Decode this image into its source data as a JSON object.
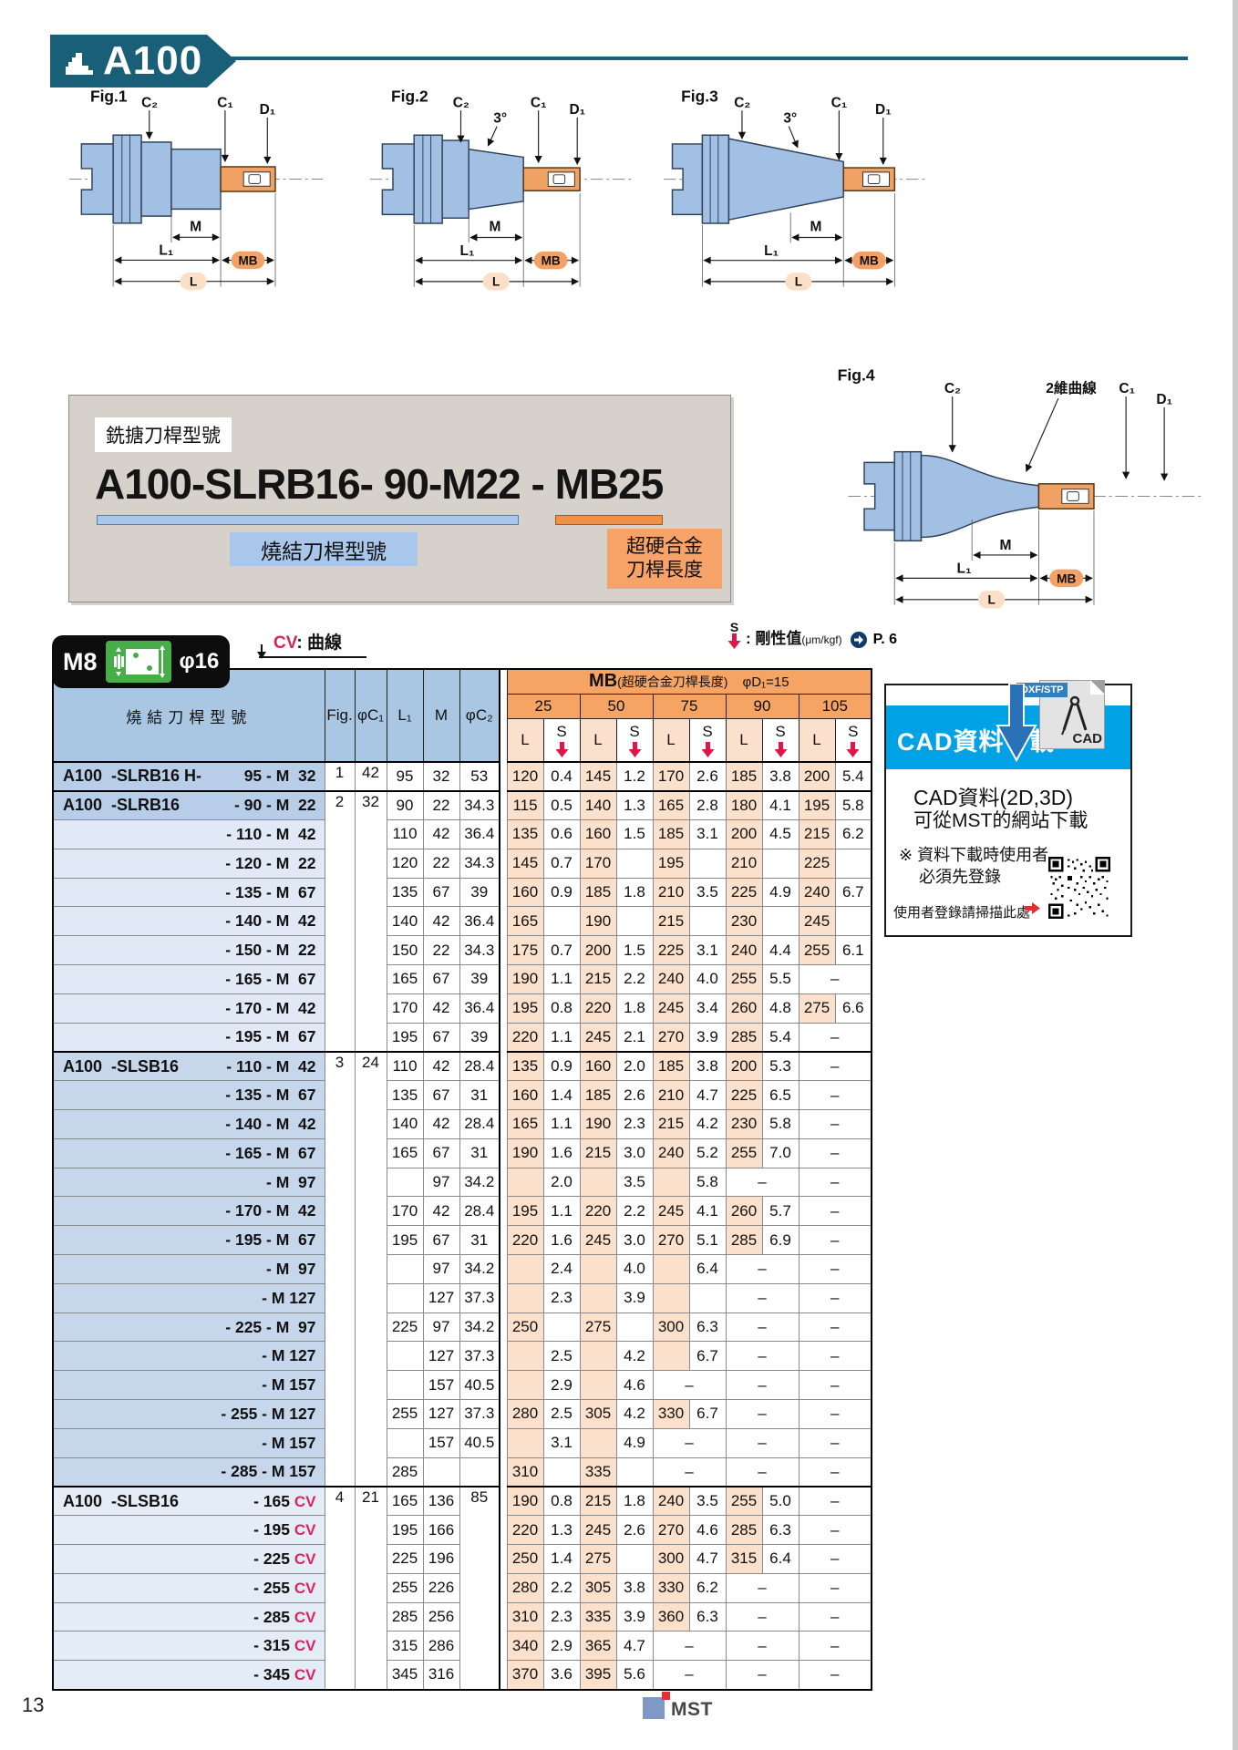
{
  "banner": {
    "model": "A100"
  },
  "figures": {
    "fig1": {
      "label": "Fig.1"
    },
    "fig2": {
      "label": "Fig.2"
    },
    "fig3": {
      "label": "Fig.3"
    },
    "fig4": {
      "label": "Fig.4"
    },
    "dims": {
      "c2": "C₂",
      "c1": "C₁",
      "d1": "D₁",
      "m": "M",
      "l1": "L₁",
      "mb": "MB",
      "l": "L",
      "angle": "3°",
      "curve": "2維曲線"
    }
  },
  "part_box": {
    "tag": "銑搪刀桿型號",
    "code_main": "A100-SLRB16- 90-M22",
    "code_sep": " - ",
    "code_mb": "MB25",
    "blue_label": "燒結刀桿型號",
    "orange_label1": "超硬合金",
    "orange_label2": "刀桿長度"
  },
  "legend": {
    "badge_left": "M8",
    "badge_right": "φ16",
    "cv_key": "CV",
    "cv_label": ": 曲線",
    "s_key": "S",
    "s_label": ": 剛性值",
    "s_unit": "(μm/kgf)",
    "s_ref": "P. 6"
  },
  "table": {
    "headers": {
      "model": "燒結刀桿型號",
      "fig": "Fig.",
      "c1": "φC₁",
      "l1": "L₁",
      "m": "M",
      "c2": "φC₂",
      "mb": "MB",
      "mb_paren": "(超硬合金刀桿長度)",
      "d1": "φD₁=15",
      "sizes": [
        "25",
        "50",
        "75",
        "90",
        "105"
      ],
      "l": "L",
      "s": "S"
    },
    "rows": [
      {
        "c": "g1",
        "lf": "A100  -SLRB16 H-",
        "rt": "95 - M  32",
        "fg": [
          "1",
          1
        ],
        "c1": [
          "42",
          1
        ],
        "l1": "95",
        "mv": "32",
        "c2": [
          "53"
        ],
        "mb": [
          [
            "120",
            "0.4"
          ],
          [
            "145",
            "1.2"
          ],
          [
            "170",
            "2.6"
          ],
          [
            "185",
            "3.8"
          ],
          [
            "200",
            "5.4"
          ]
        ]
      },
      {
        "c": "g2h gs",
        "lf": "A100  -SLRB16",
        "rt": "- 90 - M  22",
        "fg": [
          "2",
          9
        ],
        "c1": [
          "32",
          9
        ],
        "l1": "90",
        "mv": "22",
        "c2": [
          "34.3"
        ],
        "mb": [
          [
            "115",
            "0.5"
          ],
          [
            "140",
            "1.3"
          ],
          [
            "165",
            "2.8"
          ],
          [
            "180",
            "4.1"
          ],
          [
            "195",
            "5.8"
          ]
        ]
      },
      {
        "c": "g2",
        "rt": "- 110 - M  42",
        "l1": "110",
        "mv": "42",
        "c2": [
          "36.4"
        ],
        "mb": [
          [
            "135",
            "0.6"
          ],
          [
            "160",
            "1.5"
          ],
          [
            "185",
            "3.1"
          ],
          [
            "200",
            "4.5"
          ],
          [
            "215",
            "6.2"
          ]
        ]
      },
      {
        "c": "g2",
        "rt": "- 120 - M  22",
        "l1": "120",
        "mv": "22",
        "c2": [
          "34.3"
        ],
        "mb": [
          [
            "145",
            "0.7"
          ],
          [
            "170",
            ""
          ],
          [
            "195",
            ""
          ],
          [
            "210",
            ""
          ],
          [
            "225",
            ""
          ]
        ]
      },
      {
        "c": "g2",
        "rt": "- 135 - M  67",
        "l1": "135",
        "mv": "67",
        "c2": [
          "39"
        ],
        "mb": [
          [
            "160",
            "0.9"
          ],
          [
            "185",
            "1.8"
          ],
          [
            "210",
            "3.5"
          ],
          [
            "225",
            "4.9"
          ],
          [
            "240",
            "6.7"
          ]
        ]
      },
      {
        "c": "g2",
        "rt": "- 140 - M  42",
        "l1": "140",
        "mv": "42",
        "c2": [
          "36.4"
        ],
        "mb": [
          [
            "165",
            ""
          ],
          [
            "190",
            ""
          ],
          [
            "215",
            ""
          ],
          [
            "230",
            ""
          ],
          [
            "245",
            ""
          ]
        ]
      },
      {
        "c": "g2",
        "rt": "- 150 - M  22",
        "l1": "150",
        "mv": "22",
        "c2": [
          "34.3"
        ],
        "mb": [
          [
            "175",
            "0.7"
          ],
          [
            "200",
            "1.5"
          ],
          [
            "225",
            "3.1"
          ],
          [
            "240",
            "4.4"
          ],
          [
            "255",
            "6.1"
          ]
        ]
      },
      {
        "c": "g2",
        "rt": "- 165 - M  67",
        "l1": "165",
        "mv": "67",
        "c2": [
          "39"
        ],
        "mb": [
          [
            "190",
            "1.1"
          ],
          [
            "215",
            "2.2"
          ],
          [
            "240",
            "4.0"
          ],
          [
            "255",
            "5.5"
          ],
          [
            "–"
          ]
        ]
      },
      {
        "c": "g2",
        "rt": "- 170 - M  42",
        "l1": "170",
        "mv": "42",
        "c2": [
          "36.4"
        ],
        "mb": [
          [
            "195",
            "0.8"
          ],
          [
            "220",
            "1.8"
          ],
          [
            "245",
            "3.4"
          ],
          [
            "260",
            "4.8"
          ],
          [
            "275",
            "6.6"
          ]
        ]
      },
      {
        "c": "g2",
        "rt": "- 195 - M  67",
        "l1": "195",
        "mv": "67",
        "c2": [
          "39"
        ],
        "mb": [
          [
            "220",
            "1.1"
          ],
          [
            "245",
            "2.1"
          ],
          [
            "270",
            "3.9"
          ],
          [
            "285",
            "5.4"
          ],
          [
            "–"
          ]
        ]
      },
      {
        "c": "g3 gs",
        "lf": "A100  -SLSB16",
        "rt": "- 110 - M  42",
        "fg": [
          "3",
          15
        ],
        "c1": [
          "24",
          15
        ],
        "l1": "110",
        "mv": "42",
        "c2": [
          "28.4"
        ],
        "mb": [
          [
            "135",
            "0.9"
          ],
          [
            "160",
            "2.0"
          ],
          [
            "185",
            "3.8"
          ],
          [
            "200",
            "5.3"
          ],
          [
            "–"
          ]
        ]
      },
      {
        "c": "g3",
        "rt": "- 135 - M  67",
        "l1": "135",
        "mv": "67",
        "c2": [
          "31"
        ],
        "mb": [
          [
            "160",
            "1.4"
          ],
          [
            "185",
            "2.6"
          ],
          [
            "210",
            "4.7"
          ],
          [
            "225",
            "6.5"
          ],
          [
            "–"
          ]
        ]
      },
      {
        "c": "g3",
        "rt": "- 140 - M  42",
        "l1": "140",
        "mv": "42",
        "c2": [
          "28.4"
        ],
        "mb": [
          [
            "165",
            "1.1"
          ],
          [
            "190",
            "2.3"
          ],
          [
            "215",
            "4.2"
          ],
          [
            "230",
            "5.8"
          ],
          [
            "–"
          ]
        ]
      },
      {
        "c": "g3",
        "rt": "- 165 - M  67",
        "l1": "165",
        "mv": "67",
        "c2": [
          "31"
        ],
        "mb": [
          [
            "190",
            "1.6"
          ],
          [
            "215",
            "3.0"
          ],
          [
            "240",
            "5.2"
          ],
          [
            "255",
            "7.0"
          ],
          [
            "–"
          ]
        ]
      },
      {
        "c": "g3",
        "rt": "- M  97",
        "l1": "",
        "mv": "97",
        "c2": [
          "34.2"
        ],
        "mb": [
          [
            "",
            "2.0",
            "c"
          ],
          [
            "",
            "3.5",
            "c"
          ],
          [
            "",
            "5.8",
            "c"
          ],
          [
            "–"
          ],
          [
            "–"
          ]
        ]
      },
      {
        "c": "g3",
        "rt": "- 170 - M  42",
        "l1": "170",
        "mv": "42",
        "c2": [
          "28.4"
        ],
        "mb": [
          [
            "195",
            "1.1"
          ],
          [
            "220",
            "2.2"
          ],
          [
            "245",
            "4.1"
          ],
          [
            "260",
            "5.7"
          ],
          [
            "–"
          ]
        ]
      },
      {
        "c": "g3",
        "rt": "- 195 - M  67",
        "l1": "195",
        "mv": "67",
        "c2": [
          "31"
        ],
        "mb": [
          [
            "220",
            "1.6"
          ],
          [
            "245",
            "3.0"
          ],
          [
            "270",
            "5.1"
          ],
          [
            "285",
            "6.9"
          ],
          [
            "–"
          ]
        ]
      },
      {
        "c": "g3",
        "rt": "- M  97",
        "l1": "",
        "mv": "97",
        "c2": [
          "34.2"
        ],
        "mb": [
          [
            "",
            "2.4",
            "c"
          ],
          [
            "",
            "4.0",
            "c"
          ],
          [
            "",
            "6.4",
            "c"
          ],
          [
            "–"
          ],
          [
            "–"
          ]
        ]
      },
      {
        "c": "g3",
        "rt": "- M 127",
        "l1": "",
        "mv": "127",
        "c2": [
          "37.3"
        ],
        "mb": [
          [
            "",
            "2.3",
            "c"
          ],
          [
            "",
            "3.9",
            "c"
          ],
          [
            "",
            "",
            "c"
          ],
          [
            "–"
          ],
          [
            "–"
          ]
        ]
      },
      {
        "c": "g3",
        "rt": "- 225 - M  97",
        "l1": "225",
        "mv": "97",
        "c2": [
          "34.2"
        ],
        "mb": [
          [
            "250",
            ""
          ],
          [
            "275",
            ""
          ],
          [
            "300",
            "6.3"
          ],
          [
            "–"
          ],
          [
            "–"
          ]
        ]
      },
      {
        "c": "g3",
        "rt": "- M 127",
        "l1": "",
        "mv": "127",
        "c2": [
          "37.3"
        ],
        "mb": [
          [
            "",
            "2.5",
            "c"
          ],
          [
            "",
            "4.2",
            "c"
          ],
          [
            "",
            "6.7",
            "c"
          ],
          [
            "–"
          ],
          [
            "–"
          ]
        ]
      },
      {
        "c": "g3",
        "rt": "- M 157",
        "l1": "",
        "mv": "157",
        "c2": [
          "40.5"
        ],
        "mb": [
          [
            "",
            "2.9",
            "c"
          ],
          [
            "",
            "4.6",
            "c"
          ],
          [
            "–"
          ],
          [
            "–"
          ],
          [
            "–"
          ]
        ]
      },
      {
        "c": "g3",
        "rt": "- 255 - M 127",
        "l1": "255",
        "mv": "127",
        "c2": [
          "37.3"
        ],
        "mb": [
          [
            "280",
            "2.5"
          ],
          [
            "305",
            "4.2"
          ],
          [
            "330",
            "6.7"
          ],
          [
            "–"
          ],
          [
            "–"
          ]
        ]
      },
      {
        "c": "g3",
        "rt": "- M 157",
        "l1": "",
        "mv": "157",
        "c2": [
          "40.5"
        ],
        "mb": [
          [
            "",
            "3.1",
            "c"
          ],
          [
            "",
            "4.9",
            "c"
          ],
          [
            "–"
          ],
          [
            "–"
          ],
          [
            "–"
          ]
        ]
      },
      {
        "c": "g3",
        "rt": "- 285 - M 157",
        "l1": "285",
        "mv": "",
        "c2": [
          ""
        ],
        "mb": [
          [
            "310",
            ""
          ],
          [
            "335",
            ""
          ],
          [
            "–"
          ],
          [
            "–"
          ],
          [
            "–"
          ]
        ]
      },
      {
        "c": "g4 gs",
        "lf": "A100  -SLSB16",
        "rt": "- 165",
        "cv": 1,
        "fg": [
          "4",
          7
        ],
        "c1": [
          "21",
          7
        ],
        "l1": "165",
        "mv": "136",
        "c2": [
          "85",
          7
        ],
        "mb": [
          [
            "190",
            "0.8"
          ],
          [
            "215",
            "1.8"
          ],
          [
            "240",
            "3.5"
          ],
          [
            "255",
            "5.0"
          ],
          [
            "–"
          ]
        ]
      },
      {
        "c": "g4",
        "rt": "- 195",
        "cv": 1,
        "l1": "195",
        "mv": "166",
        "c2": null,
        "mb": [
          [
            "220",
            "1.3"
          ],
          [
            "245",
            "2.6"
          ],
          [
            "270",
            "4.6"
          ],
          [
            "285",
            "6.3"
          ],
          [
            "–"
          ]
        ]
      },
      {
        "c": "g4",
        "rt": "- 225",
        "cv": 1,
        "l1": "225",
        "mv": "196",
        "c2": null,
        "mb": [
          [
            "250",
            "1.4"
          ],
          [
            "275",
            ""
          ],
          [
            "300",
            "4.7"
          ],
          [
            "315",
            "6.4"
          ],
          [
            "–"
          ]
        ]
      },
      {
        "c": "g4",
        "rt": "- 255",
        "cv": 1,
        "l1": "255",
        "mv": "226",
        "c2": null,
        "mb": [
          [
            "280",
            "2.2"
          ],
          [
            "305",
            "3.8"
          ],
          [
            "330",
            "6.2"
          ],
          [
            "–"
          ],
          [
            "–"
          ]
        ]
      },
      {
        "c": "g4",
        "rt": "- 285",
        "cv": 1,
        "l1": "285",
        "mv": "256",
        "c2": null,
        "mb": [
          [
            "310",
            "2.3"
          ],
          [
            "335",
            "3.9"
          ],
          [
            "360",
            "6.3"
          ],
          [
            "–"
          ],
          [
            "–"
          ]
        ]
      },
      {
        "c": "g4",
        "rt": "- 315",
        "cv": 1,
        "l1": "315",
        "mv": "286",
        "c2": null,
        "mb": [
          [
            "340",
            "2.9"
          ],
          [
            "365",
            "4.7"
          ],
          [
            "–"
          ],
          [
            "–"
          ],
          [
            "–"
          ]
        ]
      },
      {
        "c": "g4",
        "rt": "- 345",
        "cv": 1,
        "l1": "345",
        "mv": "316",
        "c2": null,
        "mb": [
          [
            "370",
            "3.6"
          ],
          [
            "395",
            "5.6"
          ],
          [
            "–"
          ],
          [
            "–"
          ],
          [
            "–"
          ]
        ]
      }
    ]
  },
  "cad_panel": {
    "title": "CAD資料下載",
    "tag": "DXF/STP",
    "file_label": "CAD",
    "line1": "CAD資料(2D,3D)",
    "line2": "可從MST的網站下載",
    "note1": "※ 資料下載時使用者",
    "note2": "必須先登錄",
    "qr_label": "使用者登錄請掃描此處",
    "accent": "#00a2e5"
  },
  "footer": {
    "page": "13",
    "brand": "MST"
  }
}
